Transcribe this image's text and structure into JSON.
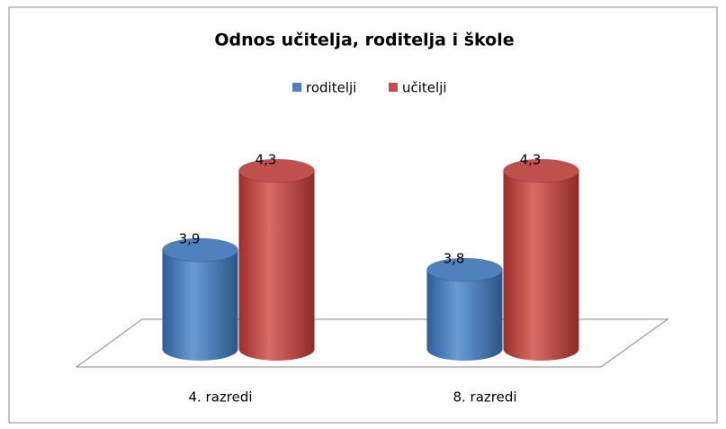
{
  "chart_data": {
    "type": "bar3d",
    "title": "Odnos učitelja, roditelja i škole",
    "categories": [
      "4. razredi",
      "8. razredi"
    ],
    "series": [
      {
        "name": "roditelji",
        "color": "#4f81bd",
        "values": [
          3.9,
          3.8
        ],
        "value_labels": [
          "3,9",
          "3,8"
        ]
      },
      {
        "name": "učitelji",
        "color": "#c0504d",
        "values": [
          4.3,
          4.3
        ],
        "value_labels": [
          "4,3",
          "4,3"
        ]
      }
    ],
    "ylim": [
      3.4,
      4.4
    ]
  }
}
